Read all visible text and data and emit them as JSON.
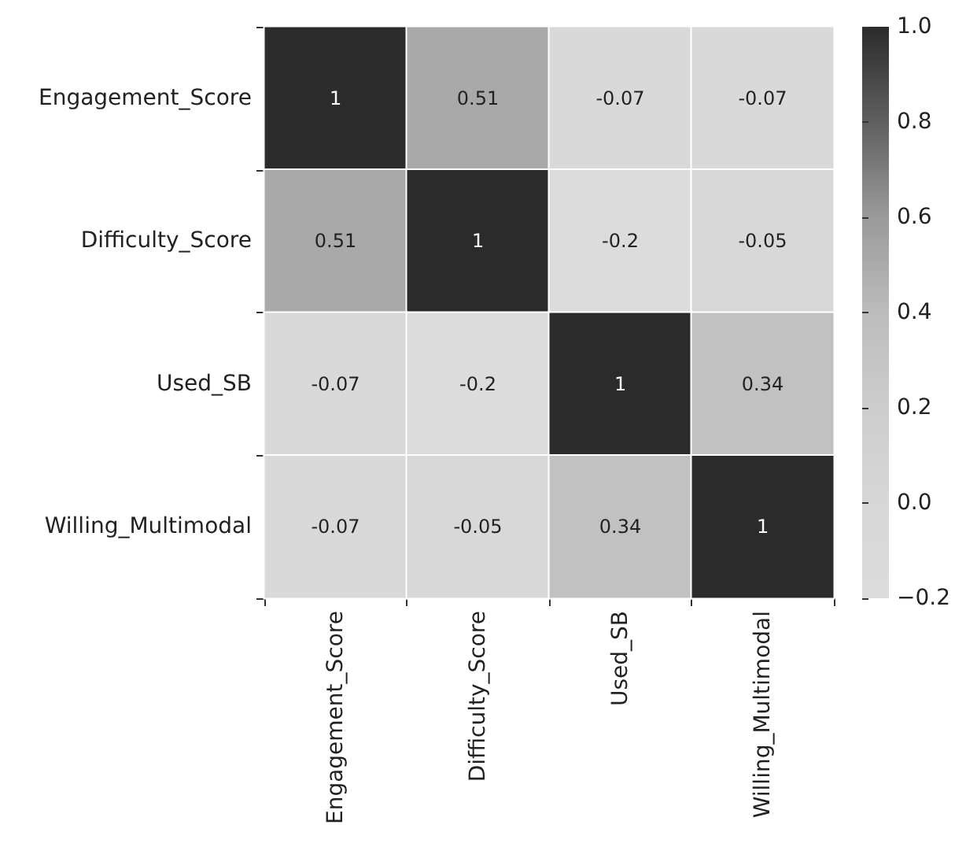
{
  "chart_data": {
    "type": "heatmap",
    "categories": [
      "Engagement_Score",
      "Difficulty_Score",
      "Used_SB",
      "Willing_Multimodal"
    ],
    "y_categories": [
      "Engagement_Score",
      "Difficulty_Score",
      "Used_SB",
      "Willing_Multimodal"
    ],
    "cells": [
      [
        1,
        0.51,
        -0.07,
        -0.07
      ],
      [
        0.51,
        1,
        -0.2,
        -0.05
      ],
      [
        -0.07,
        -0.2,
        1,
        0.34
      ],
      [
        -0.07,
        -0.05,
        0.34,
        1
      ]
    ],
    "clim": [
      -0.2,
      1.0
    ],
    "cticks": [
      {
        "value": -0.2,
        "label": "−0.2"
      },
      {
        "value": 0,
        "label": "0.0"
      },
      {
        "value": 0.2,
        "label": "0.2"
      },
      {
        "value": 0.4,
        "label": "0.4"
      },
      {
        "value": 0.6,
        "label": "0.6"
      },
      {
        "value": 0.8,
        "label": "0.8"
      },
      {
        "value": 1.0,
        "label": "1.0"
      }
    ],
    "data_labels": true
  }
}
